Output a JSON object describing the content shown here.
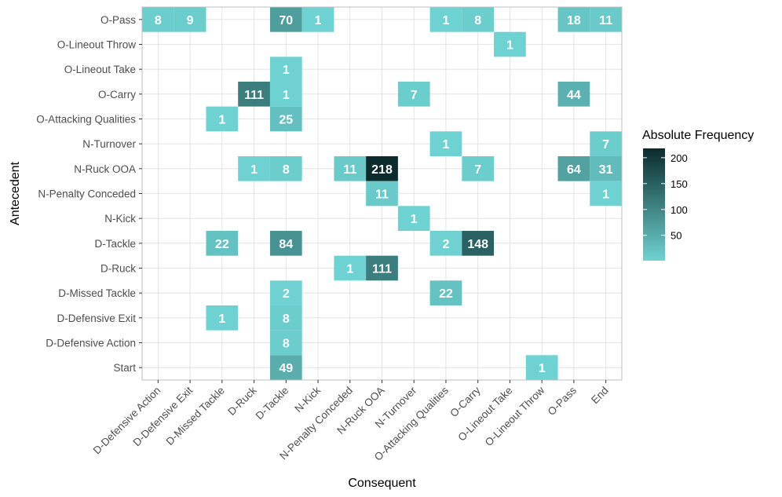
{
  "chart_data": {
    "type": "heatmap",
    "title": "",
    "xlabel": "Consequent",
    "ylabel": "Antecedent",
    "x_categories": [
      "D-Defensive Action",
      "D-Defensive Exit",
      "D-Missed Tackle",
      "D-Ruck",
      "D-Tackle",
      "N-Kick",
      "N-Penalty Conceded",
      "N-Ruck OOA",
      "N-Turnover",
      "O-Attacking Qualities",
      "O-Carry",
      "O-Lineout Take",
      "O-Lineout Throw",
      "O-Pass",
      "End"
    ],
    "y_categories": [
      "O-Pass",
      "O-Lineout Throw",
      "O-Lineout Take",
      "O-Carry",
      "O-Attacking Qualities",
      "N-Turnover",
      "N-Ruck OOA",
      "N-Penalty Conceded",
      "N-Kick",
      "D-Tackle",
      "D-Ruck",
      "D-Missed Tackle",
      "D-Defensive Exit",
      "D-Defensive Action",
      "Start"
    ],
    "cells": [
      {
        "x": "D-Defensive Action",
        "y": "O-Pass",
        "value": 8
      },
      {
        "x": "D-Defensive Exit",
        "y": "O-Pass",
        "value": 9
      },
      {
        "x": "D-Tackle",
        "y": "O-Pass",
        "value": 70
      },
      {
        "x": "N-Kick",
        "y": "O-Pass",
        "value": 1
      },
      {
        "x": "O-Attacking Qualities",
        "y": "O-Pass",
        "value": 1
      },
      {
        "x": "O-Carry",
        "y": "O-Pass",
        "value": 8
      },
      {
        "x": "O-Pass",
        "y": "O-Pass",
        "value": 18
      },
      {
        "x": "End",
        "y": "O-Pass",
        "value": 11
      },
      {
        "x": "O-Lineout Take",
        "y": "O-Lineout Throw",
        "value": 1
      },
      {
        "x": "D-Tackle",
        "y": "O-Lineout Take",
        "value": 1
      },
      {
        "x": "D-Ruck",
        "y": "O-Carry",
        "value": 111
      },
      {
        "x": "D-Tackle",
        "y": "O-Carry",
        "value": 1
      },
      {
        "x": "N-Turnover",
        "y": "O-Carry",
        "value": 7
      },
      {
        "x": "O-Pass",
        "y": "O-Carry",
        "value": 44
      },
      {
        "x": "D-Missed Tackle",
        "y": "O-Attacking Qualities",
        "value": 1
      },
      {
        "x": "D-Tackle",
        "y": "O-Attacking Qualities",
        "value": 25
      },
      {
        "x": "O-Attacking Qualities",
        "y": "N-Turnover",
        "value": 1
      },
      {
        "x": "End",
        "y": "N-Turnover",
        "value": 7
      },
      {
        "x": "D-Ruck",
        "y": "N-Ruck OOA",
        "value": 1
      },
      {
        "x": "D-Tackle",
        "y": "N-Ruck OOA",
        "value": 8
      },
      {
        "x": "N-Penalty Conceded",
        "y": "N-Ruck OOA",
        "value": 11
      },
      {
        "x": "N-Ruck OOA",
        "y": "N-Ruck OOA",
        "value": 218
      },
      {
        "x": "O-Carry",
        "y": "N-Ruck OOA",
        "value": 7
      },
      {
        "x": "O-Pass",
        "y": "N-Ruck OOA",
        "value": 64
      },
      {
        "x": "End",
        "y": "N-Ruck OOA",
        "value": 31
      },
      {
        "x": "N-Ruck OOA",
        "y": "N-Penalty Conceded",
        "value": 11
      },
      {
        "x": "End",
        "y": "N-Penalty Conceded",
        "value": 1
      },
      {
        "x": "N-Turnover",
        "y": "N-Kick",
        "value": 1
      },
      {
        "x": "D-Missed Tackle",
        "y": "D-Tackle",
        "value": 22
      },
      {
        "x": "D-Tackle",
        "y": "D-Tackle",
        "value": 84
      },
      {
        "x": "O-Attacking Qualities",
        "y": "D-Tackle",
        "value": 2
      },
      {
        "x": "O-Carry",
        "y": "D-Tackle",
        "value": 148
      },
      {
        "x": "N-Penalty Conceded",
        "y": "D-Ruck",
        "value": 1
      },
      {
        "x": "N-Ruck OOA",
        "y": "D-Ruck",
        "value": 111
      },
      {
        "x": "D-Tackle",
        "y": "D-Missed Tackle",
        "value": 2
      },
      {
        "x": "O-Attacking Qualities",
        "y": "D-Missed Tackle",
        "value": 22
      },
      {
        "x": "D-Missed Tackle",
        "y": "D-Defensive Exit",
        "value": 1
      },
      {
        "x": "D-Tackle",
        "y": "D-Defensive Exit",
        "value": 8
      },
      {
        "x": "D-Tackle",
        "y": "D-Defensive Action",
        "value": 8
      },
      {
        "x": "D-Tackle",
        "y": "Start",
        "value": 49
      },
      {
        "x": "O-Lineout Throw",
        "y": "Start",
        "value": 1
      }
    ],
    "legend": {
      "title": "Absolute Frequency",
      "position": "right",
      "min": 1,
      "max": 218,
      "ticks": [
        50,
        100,
        150,
        200
      ],
      "color_low": "#6fd2d2",
      "color_high": "#0b2b2c"
    },
    "grid": true
  }
}
